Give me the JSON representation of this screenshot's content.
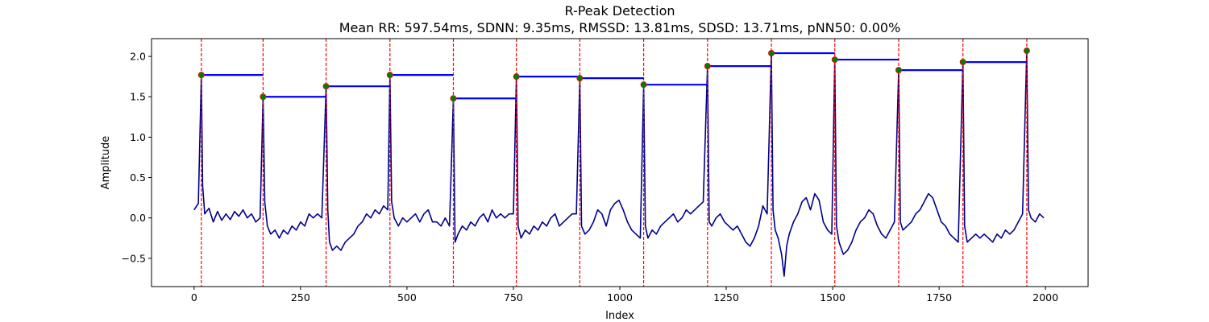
{
  "chart_data": {
    "type": "line",
    "title": "R-Peak Detection",
    "subtitle": "Mean RR: 597.54ms, SDNN: 9.35ms, RMSSD: 13.81ms, SDSD: 13.71ms, pNN50: 0.00%",
    "xlabel": "Index",
    "ylabel": "Amplitude",
    "xlim": [
      -100,
      2100
    ],
    "ylim": [
      -0.85,
      2.22
    ],
    "xticks": [
      0,
      250,
      500,
      750,
      1000,
      1250,
      1500,
      1750,
      2000
    ],
    "xtick_labels": [
      "0",
      "250",
      "500",
      "750",
      "1000",
      "1250",
      "1500",
      "1750",
      "2000"
    ],
    "yticks": [
      -0.5,
      0.0,
      0.5,
      1.0,
      1.5,
      2.0
    ],
    "ytick_labels": [
      "−0.5",
      "0.0",
      "0.5",
      "1.0",
      "1.5",
      "2.0"
    ],
    "grid": false,
    "colors": {
      "signal": "#00008b",
      "peak_marker": "#008000",
      "peak_edge": "#ff0000",
      "peak_line": "#ff0000",
      "rr_segment": "#0000ff"
    },
    "peaks": {
      "x": [
        17,
        162,
        310,
        460,
        609,
        757,
        906,
        1056,
        1206,
        1356,
        1505,
        1655,
        1806,
        1956
      ],
      "y": [
        1.77,
        1.5,
        1.63,
        1.77,
        1.48,
        1.75,
        1.73,
        1.65,
        1.88,
        2.04,
        1.96,
        1.83,
        1.93,
        2.07
      ]
    },
    "signal_points": [
      [
        0,
        0.1
      ],
      [
        10,
        0.18
      ],
      [
        17,
        1.77
      ],
      [
        20,
        0.4
      ],
      [
        25,
        0.05
      ],
      [
        35,
        0.12
      ],
      [
        45,
        -0.05
      ],
      [
        55,
        0.08
      ],
      [
        65,
        -0.03
      ],
      [
        75,
        0.05
      ],
      [
        85,
        -0.02
      ],
      [
        95,
        0.08
      ],
      [
        105,
        0.02
      ],
      [
        115,
        0.1
      ],
      [
        125,
        0.0
      ],
      [
        135,
        0.05
      ],
      [
        145,
        -0.05
      ],
      [
        155,
        0.0
      ],
      [
        162,
        1.5
      ],
      [
        166,
        0.2
      ],
      [
        172,
        -0.1
      ],
      [
        180,
        -0.2
      ],
      [
        190,
        -0.15
      ],
      [
        200,
        -0.25
      ],
      [
        210,
        -0.15
      ],
      [
        220,
        -0.2
      ],
      [
        230,
        -0.1
      ],
      [
        240,
        -0.15
      ],
      [
        250,
        -0.05
      ],
      [
        260,
        -0.1
      ],
      [
        270,
        0.05
      ],
      [
        280,
        0.0
      ],
      [
        290,
        0.05
      ],
      [
        300,
        0.0
      ],
      [
        310,
        1.63
      ],
      [
        314,
        0.1
      ],
      [
        318,
        -0.3
      ],
      [
        325,
        -0.4
      ],
      [
        335,
        -0.35
      ],
      [
        345,
        -0.4
      ],
      [
        355,
        -0.3
      ],
      [
        365,
        -0.25
      ],
      [
        375,
        -0.2
      ],
      [
        385,
        -0.1
      ],
      [
        395,
        -0.05
      ],
      [
        405,
        0.05
      ],
      [
        415,
        0.0
      ],
      [
        425,
        0.1
      ],
      [
        435,
        0.05
      ],
      [
        445,
        0.15
      ],
      [
        455,
        0.1
      ],
      [
        460,
        1.77
      ],
      [
        464,
        0.2
      ],
      [
        470,
        0.0
      ],
      [
        480,
        -0.1
      ],
      [
        490,
        0.0
      ],
      [
        500,
        -0.05
      ],
      [
        510,
        0.0
      ],
      [
        520,
        0.05
      ],
      [
        530,
        -0.05
      ],
      [
        540,
        0.05
      ],
      [
        550,
        0.1
      ],
      [
        560,
        -0.05
      ],
      [
        570,
        -0.05
      ],
      [
        580,
        -0.1
      ],
      [
        590,
        0.0
      ],
      [
        600,
        -0.1
      ],
      [
        609,
        1.48
      ],
      [
        613,
        -0.3
      ],
      [
        620,
        -0.2
      ],
      [
        630,
        -0.1
      ],
      [
        640,
        -0.15
      ],
      [
        650,
        -0.05
      ],
      [
        660,
        -0.1
      ],
      [
        670,
        0.0
      ],
      [
        680,
        0.05
      ],
      [
        690,
        -0.05
      ],
      [
        700,
        0.1
      ],
      [
        710,
        0.0
      ],
      [
        720,
        0.05
      ],
      [
        730,
        0.0
      ],
      [
        740,
        0.05
      ],
      [
        750,
        0.05
      ],
      [
        757,
        1.75
      ],
      [
        761,
        -0.1
      ],
      [
        768,
        -0.25
      ],
      [
        778,
        -0.15
      ],
      [
        788,
        -0.2
      ],
      [
        798,
        -0.1
      ],
      [
        808,
        -0.15
      ],
      [
        818,
        -0.05
      ],
      [
        828,
        -0.1
      ],
      [
        838,
        0.0
      ],
      [
        848,
        0.05
      ],
      [
        858,
        -0.1
      ],
      [
        868,
        -0.05
      ],
      [
        878,
        0.0
      ],
      [
        888,
        0.05
      ],
      [
        898,
        0.05
      ],
      [
        906,
        1.73
      ],
      [
        910,
        -0.1
      ],
      [
        918,
        -0.2
      ],
      [
        928,
        -0.15
      ],
      [
        938,
        -0.05
      ],
      [
        948,
        0.1
      ],
      [
        958,
        0.05
      ],
      [
        968,
        -0.1
      ],
      [
        978,
        0.1
      ],
      [
        988,
        0.18
      ],
      [
        998,
        0.22
      ],
      [
        1008,
        0.1
      ],
      [
        1018,
        -0.05
      ],
      [
        1028,
        -0.15
      ],
      [
        1038,
        -0.2
      ],
      [
        1048,
        -0.25
      ],
      [
        1056,
        1.65
      ],
      [
        1060,
        -0.1
      ],
      [
        1066,
        -0.25
      ],
      [
        1076,
        -0.15
      ],
      [
        1086,
        -0.2
      ],
      [
        1096,
        -0.1
      ],
      [
        1106,
        -0.05
      ],
      [
        1116,
        0.0
      ],
      [
        1126,
        0.05
      ],
      [
        1136,
        -0.05
      ],
      [
        1146,
        0.0
      ],
      [
        1156,
        0.1
      ],
      [
        1166,
        0.05
      ],
      [
        1176,
        0.1
      ],
      [
        1186,
        0.15
      ],
      [
        1196,
        0.2
      ],
      [
        1206,
        1.88
      ],
      [
        1210,
        -0.05
      ],
      [
        1216,
        -0.1
      ],
      [
        1226,
        0.0
      ],
      [
        1236,
        0.05
      ],
      [
        1246,
        -0.05
      ],
      [
        1256,
        -0.1
      ],
      [
        1266,
        -0.15
      ],
      [
        1276,
        -0.1
      ],
      [
        1286,
        -0.2
      ],
      [
        1296,
        -0.3
      ],
      [
        1306,
        -0.35
      ],
      [
        1316,
        -0.25
      ],
      [
        1326,
        -0.1
      ],
      [
        1336,
        0.15
      ],
      [
        1346,
        0.05
      ],
      [
        1356,
        2.04
      ],
      [
        1360,
        0.1
      ],
      [
        1365,
        -0.15
      ],
      [
        1372,
        -0.25
      ],
      [
        1380,
        -0.45
      ],
      [
        1386,
        -0.72
      ],
      [
        1392,
        -0.35
      ],
      [
        1398,
        -0.2
      ],
      [
        1408,
        -0.05
      ],
      [
        1418,
        0.05
      ],
      [
        1428,
        0.2
      ],
      [
        1438,
        0.25
      ],
      [
        1448,
        0.1
      ],
      [
        1458,
        0.3
      ],
      [
        1468,
        0.22
      ],
      [
        1478,
        -0.05
      ],
      [
        1488,
        -0.15
      ],
      [
        1498,
        -0.2
      ],
      [
        1505,
        1.96
      ],
      [
        1509,
        -0.1
      ],
      [
        1515,
        -0.3
      ],
      [
        1525,
        -0.45
      ],
      [
        1535,
        -0.4
      ],
      [
        1545,
        -0.3
      ],
      [
        1555,
        -0.15
      ],
      [
        1565,
        -0.05
      ],
      [
        1575,
        0.0
      ],
      [
        1585,
        0.1
      ],
      [
        1595,
        0.05
      ],
      [
        1605,
        -0.1
      ],
      [
        1615,
        -0.2
      ],
      [
        1625,
        -0.25
      ],
      [
        1635,
        -0.15
      ],
      [
        1645,
        -0.05
      ],
      [
        1655,
        1.83
      ],
      [
        1659,
        -0.05
      ],
      [
        1665,
        -0.15
      ],
      [
        1675,
        -0.1
      ],
      [
        1685,
        -0.05
      ],
      [
        1695,
        0.05
      ],
      [
        1705,
        0.1
      ],
      [
        1715,
        0.2
      ],
      [
        1725,
        0.3
      ],
      [
        1735,
        0.25
      ],
      [
        1745,
        0.1
      ],
      [
        1755,
        -0.05
      ],
      [
        1765,
        -0.1
      ],
      [
        1775,
        -0.2
      ],
      [
        1785,
        -0.25
      ],
      [
        1795,
        -0.3
      ],
      [
        1806,
        1.93
      ],
      [
        1810,
        -0.1
      ],
      [
        1816,
        -0.3
      ],
      [
        1826,
        -0.25
      ],
      [
        1836,
        -0.2
      ],
      [
        1846,
        -0.25
      ],
      [
        1856,
        -0.2
      ],
      [
        1866,
        -0.25
      ],
      [
        1876,
        -0.3
      ],
      [
        1886,
        -0.2
      ],
      [
        1896,
        -0.25
      ],
      [
        1906,
        -0.15
      ],
      [
        1916,
        -0.2
      ],
      [
        1926,
        -0.15
      ],
      [
        1936,
        -0.05
      ],
      [
        1946,
        0.05
      ],
      [
        1956,
        2.07
      ],
      [
        1960,
        0.1
      ],
      [
        1966,
        0.0
      ],
      [
        1976,
        -0.05
      ],
      [
        1986,
        0.05
      ],
      [
        1996,
        0.0
      ]
    ]
  }
}
